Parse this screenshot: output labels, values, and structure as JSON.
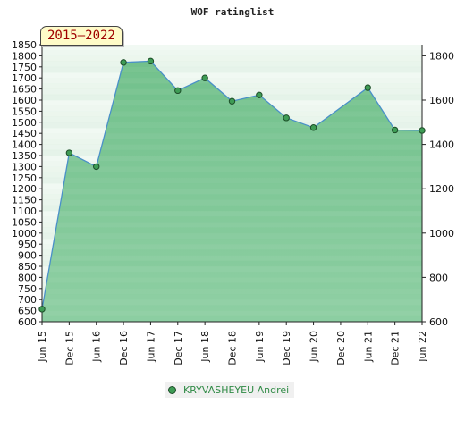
{
  "chart_data": {
    "type": "area",
    "title": "WOF ratinglist",
    "period": "2015–2022",
    "categories": [
      "Jun 15",
      "Dec 15",
      "Jun 16",
      "Dec 16",
      "Jun 17",
      "Dec 17",
      "Jun 18",
      "Dec 18",
      "Jun 19",
      "Dec 19",
      "Jun 20",
      "Dec 20",
      "Jun 21",
      "Dec 21",
      "Jun 22"
    ],
    "series": [
      {
        "name": "KRYVASHEYEU Andrei",
        "values": [
          657,
          1362,
          1300,
          1770,
          1776,
          1643,
          1700,
          1595,
          1623,
          1520,
          1476,
          null,
          1656,
          1465,
          1463
        ]
      }
    ],
    "ylim": [
      600,
      1850
    ],
    "left_ticks": [
      600,
      650,
      700,
      750,
      800,
      850,
      900,
      950,
      1000,
      1050,
      1100,
      1150,
      1200,
      1250,
      1300,
      1350,
      1400,
      1450,
      1500,
      1550,
      1600,
      1650,
      1700,
      1750,
      1800,
      1850
    ],
    "right_ticks": [
      600,
      800,
      1000,
      1200,
      1400,
      1600,
      1800
    ],
    "legend_position": "bottom",
    "colors": {
      "line": "#4a90c8",
      "marker": "#3e9c55",
      "area": "#52b070"
    }
  }
}
